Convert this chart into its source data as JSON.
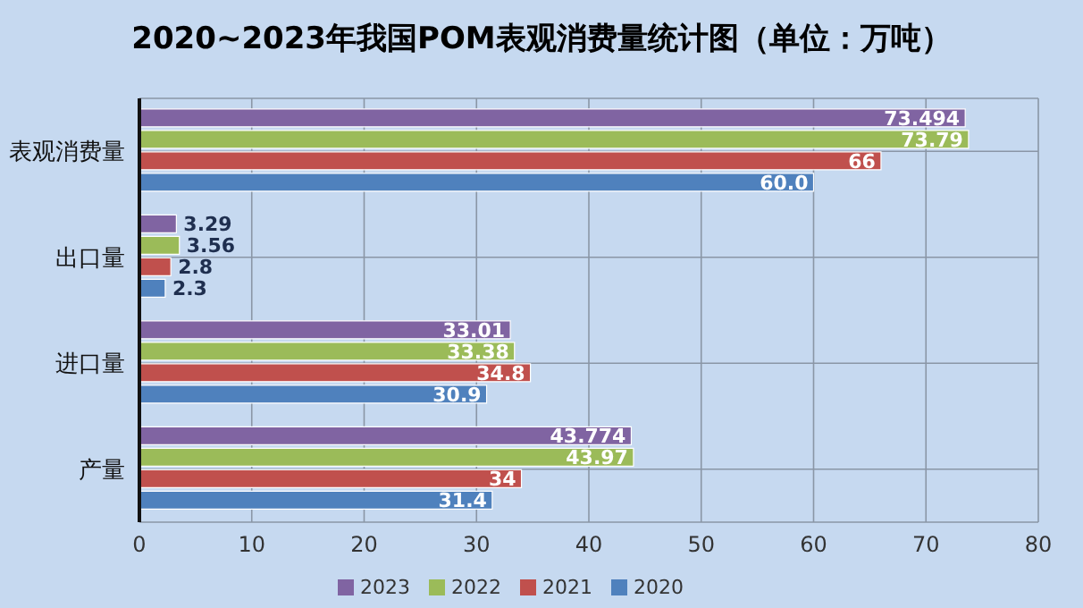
{
  "chart_data": {
    "type": "bar",
    "orientation": "horizontal",
    "title": "2020~2023年我国POM表观消费量统计图（单位：万吨）",
    "categories": [
      "表观消费量",
      "出口量",
      "进口量",
      "产量"
    ],
    "series": [
      {
        "name": "2023",
        "color": "#8064a2",
        "values": [
          73.494,
          3.29,
          33.01,
          43.774
        ],
        "value_labels": [
          "73.494",
          "3.29",
          "33.01",
          "43.774"
        ]
      },
      {
        "name": "2022",
        "color": "#9bbb59",
        "values": [
          73.79,
          3.56,
          33.38,
          43.97
        ],
        "value_labels": [
          "73.79",
          "3.56",
          "33.38",
          "43.97"
        ]
      },
      {
        "name": "2021",
        "color": "#c0504d",
        "values": [
          66,
          2.8,
          34.8,
          34
        ],
        "value_labels": [
          "66",
          "2.8",
          "34.8",
          "34"
        ]
      },
      {
        "name": "2020",
        "color": "#4f81bd",
        "values": [
          60.0,
          2.3,
          30.9,
          31.4
        ],
        "value_labels": [
          "60.0",
          "2.3",
          "30.9",
          "31.4"
        ]
      }
    ],
    "xlim": [
      0,
      80
    ],
    "xticks": [
      0,
      10,
      20,
      30,
      40,
      50,
      60,
      70,
      80
    ],
    "grid": true,
    "legend": "bottom"
  }
}
